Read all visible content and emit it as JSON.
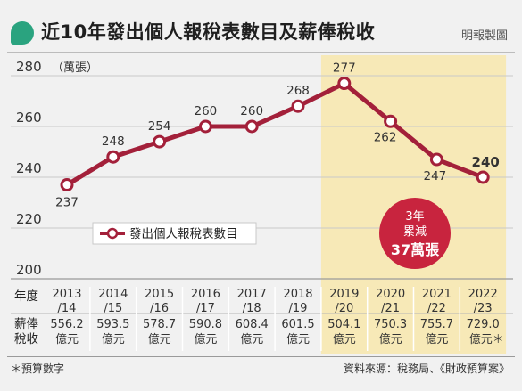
{
  "header": {
    "title": "近10年發出個人報稅表數目及薪俸稅收",
    "brand": "明報製圖"
  },
  "chart_data": {
    "type": "line",
    "unit_label": "（萬張）",
    "y_ticks": [
      200,
      220,
      240,
      260,
      280
    ],
    "ylim": [
      200,
      290
    ],
    "categories": [
      "2013/14",
      "2014/15",
      "2015/16",
      "2016/17",
      "2017/18",
      "2018/19",
      "2019/20",
      "2020/21",
      "2021/22",
      "2022/23"
    ],
    "category_lines": [
      [
        "2013",
        "/14"
      ],
      [
        "2014",
        "/15"
      ],
      [
        "2015",
        "/16"
      ],
      [
        "2016",
        "/17"
      ],
      [
        "2017",
        "/18"
      ],
      [
        "2018",
        "/19"
      ],
      [
        "2019",
        "/20"
      ],
      [
        "2020",
        "/21"
      ],
      [
        "2021",
        "/22"
      ],
      [
        "2022",
        "/23"
      ]
    ],
    "series": [
      {
        "name": "發出個人報稅表數目",
        "values": [
          237,
          248,
          254,
          260,
          260,
          268,
          277,
          262,
          247,
          240
        ],
        "color": "#a3203a"
      }
    ],
    "highlight_range": [
      "2019/20",
      "2022/23"
    ],
    "highlight_color": "#f7e9b7",
    "annotation": {
      "lines": [
        "3年",
        "累減",
        "37萬張"
      ],
      "color": "#c8243e"
    },
    "table": {
      "row_header_year": "年度",
      "row_header_tax": [
        "薪俸",
        "稅收"
      ],
      "tax_values": [
        "556.2",
        "593.5",
        "578.7",
        "590.8",
        "608.4",
        "601.5",
        "504.1",
        "750.3",
        "755.7",
        "729.0"
      ],
      "tax_unit": "億元",
      "tax_unit_last": "億元＊"
    },
    "grid": true,
    "legend_position": "lower-left"
  },
  "footer": {
    "note": "＊預算數字",
    "source": "資料來源：稅務局、《財政預算案》"
  }
}
